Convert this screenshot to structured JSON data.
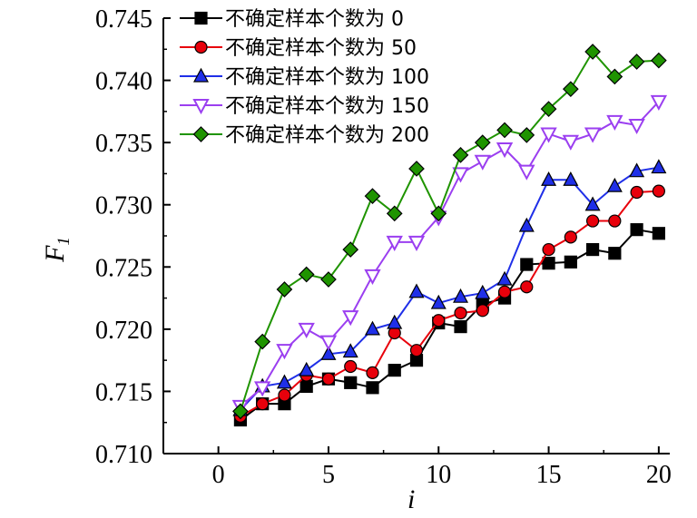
{
  "chart_data": {
    "type": "line",
    "title": "",
    "xlabel": "i",
    "ylabel": "F",
    "ylabel_subscript": "1",
    "xlim": [
      -2.5,
      20.5
    ],
    "ylim": [
      0.71,
      0.745
    ],
    "xticks": [
      0,
      5,
      10,
      15,
      20
    ],
    "yticks": [
      0.71,
      0.715,
      0.72,
      0.725,
      0.73,
      0.735,
      0.74,
      0.745
    ],
    "xtick_labels": [
      "0",
      "5",
      "10",
      "15",
      "20"
    ],
    "ytick_labels": [
      "0.710",
      "0.715",
      "0.720",
      "0.725",
      "0.730",
      "0.735",
      "0.740",
      "0.745"
    ],
    "grid": false,
    "legend_position": "top-left",
    "x": [
      1,
      2,
      3,
      4,
      5,
      6,
      7,
      8,
      9,
      10,
      11,
      12,
      13,
      14,
      15,
      16,
      17,
      18,
      19,
      20
    ],
    "series": [
      {
        "name": "不确定样本个数为 0",
        "marker": "square",
        "color": "#000000",
        "fill": "#000000",
        "values": [
          0.7127,
          0.714,
          0.714,
          0.7154,
          0.716,
          0.7157,
          0.7153,
          0.7167,
          0.7175,
          0.7205,
          0.7202,
          0.722,
          0.7225,
          0.7252,
          0.7253,
          0.7254,
          0.7264,
          0.7261,
          0.728,
          0.7277
        ]
      },
      {
        "name": "不确定样本个数为 50",
        "marker": "circle",
        "color": "#e8000b",
        "fill": "#e8000b",
        "values": [
          0.713,
          0.714,
          0.7147,
          0.7163,
          0.716,
          0.717,
          0.7165,
          0.7197,
          0.7183,
          0.7207,
          0.7213,
          0.7215,
          0.723,
          0.7234,
          0.7264,
          0.7274,
          0.7287,
          0.7287,
          0.731,
          0.7311
        ]
      },
      {
        "name": "不确定样本个数为 100",
        "marker": "triangle-up",
        "color": "#1f2fe8",
        "fill": "#1f2fe8",
        "values": [
          0.7135,
          0.7154,
          0.7157,
          0.7167,
          0.718,
          0.7182,
          0.72,
          0.7205,
          0.723,
          0.7221,
          0.7226,
          0.7229,
          0.724,
          0.7283,
          0.732,
          0.732,
          0.73,
          0.7315,
          0.7327,
          0.733
        ]
      },
      {
        "name": "不确定样本个数为 150",
        "marker": "triangle-down",
        "color": "#9b3ff0",
        "fill": "#ffffff",
        "values": [
          0.7138,
          0.7153,
          0.7183,
          0.72,
          0.719,
          0.721,
          0.7243,
          0.727,
          0.727,
          0.729,
          0.7325,
          0.7335,
          0.7345,
          0.7327,
          0.7357,
          0.7351,
          0.7357,
          0.7367,
          0.7364,
          0.7383
        ]
      },
      {
        "name": "不确定样本个数为 200",
        "marker": "diamond",
        "color": "#1f9400",
        "fill": "#1f9400",
        "values": [
          0.7134,
          0.719,
          0.7232,
          0.7244,
          0.724,
          0.7264,
          0.7307,
          0.7293,
          0.7329,
          0.7293,
          0.734,
          0.735,
          0.736,
          0.7356,
          0.7377,
          0.7393,
          0.7423,
          0.7403,
          0.7415,
          0.7416
        ]
      }
    ]
  }
}
